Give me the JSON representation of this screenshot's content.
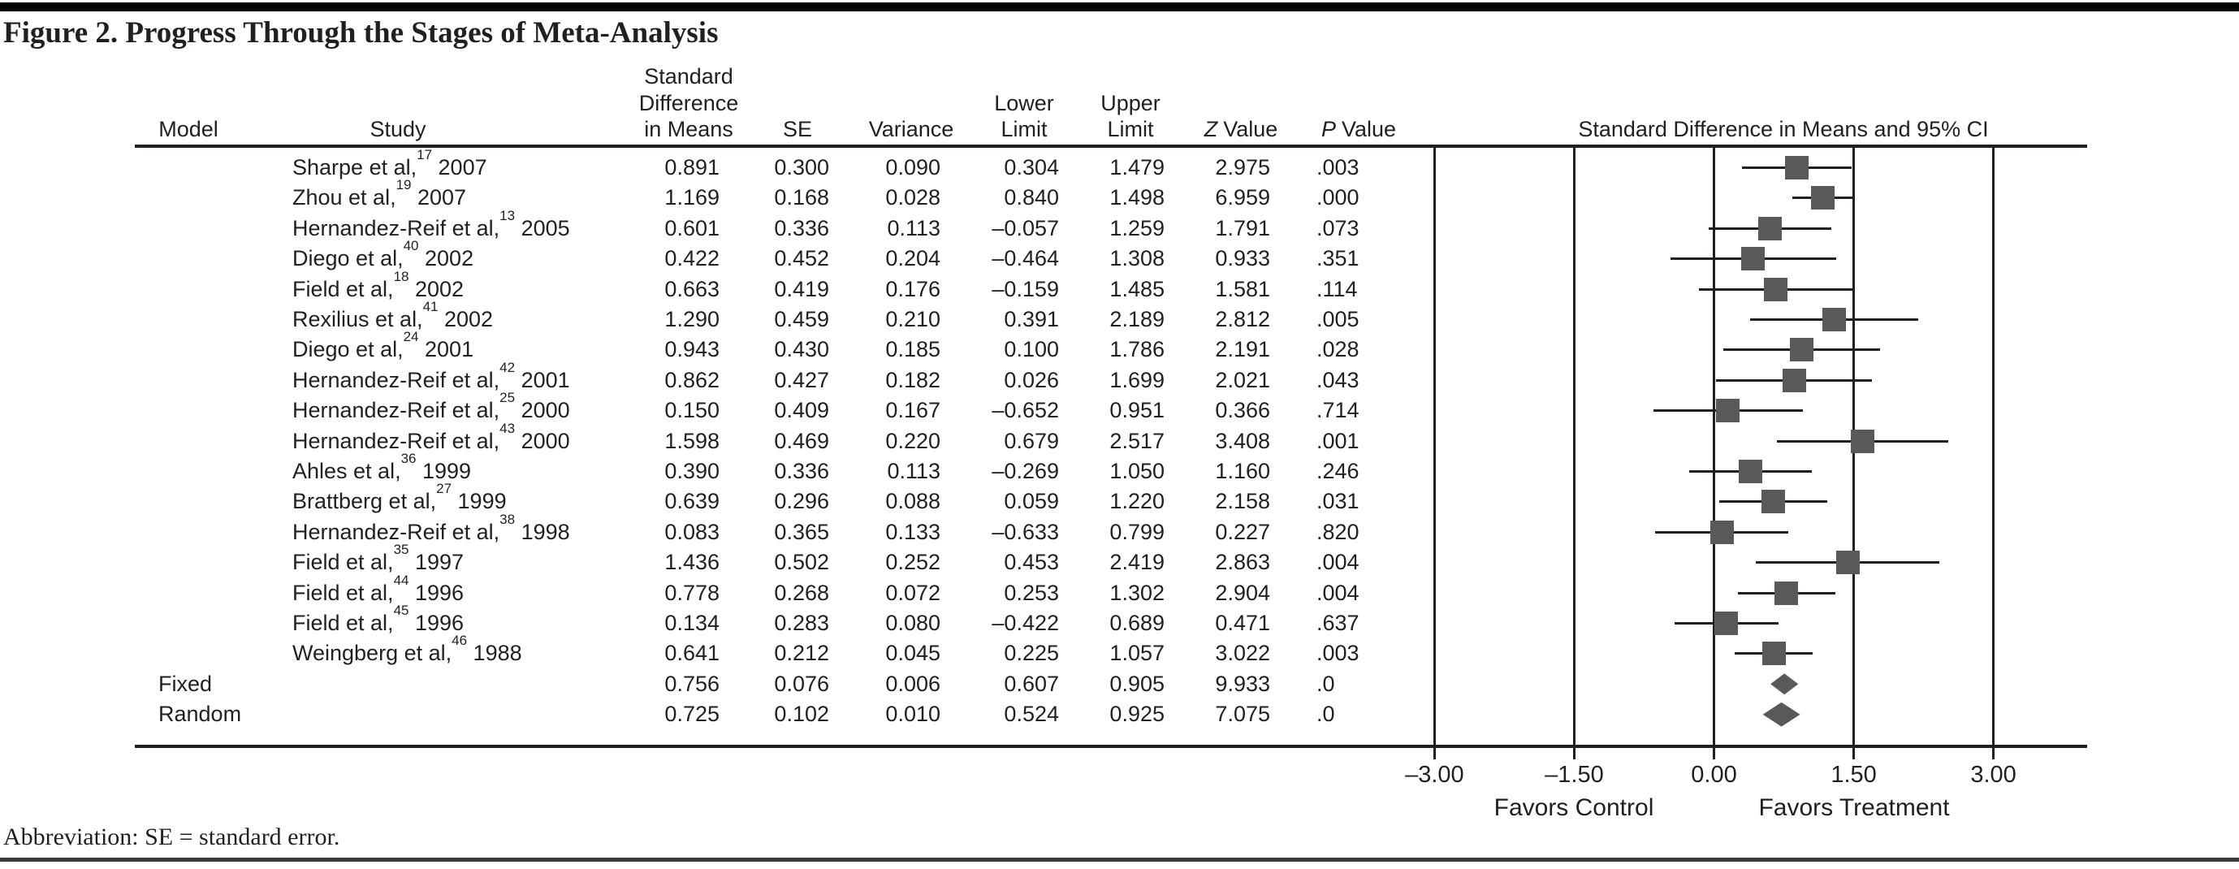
{
  "figure": {
    "title": "Figure 2. Progress Through the Stages of Meta-Analysis",
    "footnote": "Abbreviation: SE = standard error."
  },
  "table": {
    "headers": {
      "model": "Model",
      "study": "Study",
      "sdm_line1": "Standard",
      "sdm_line2": "Difference",
      "sdm_line3": "in Means",
      "se": "SE",
      "variance": "Variance",
      "lower_line1": "Lower",
      "lower_line2": "Limit",
      "upper_line1": "Upper",
      "upper_line2": "Limit",
      "z_prefix": "Z",
      "z_suffix": "Value",
      "p_prefix": "P",
      "p_suffix": "Value"
    },
    "rows": [
      {
        "model": "",
        "study": "Sharpe et al,",
        "ref": "17",
        "year": "2007",
        "sdm": "0.891",
        "se": "0.300",
        "variance": "0.090",
        "lower": "0.304",
        "upper": "1.479",
        "z": "2.975",
        "p": ".003"
      },
      {
        "model": "",
        "study": "Zhou et al,",
        "ref": "19",
        "year": "2007",
        "sdm": "1.169",
        "se": "0.168",
        "variance": "0.028",
        "lower": "0.840",
        "upper": "1.498",
        "z": "6.959",
        "p": ".000"
      },
      {
        "model": "",
        "study": "Hernandez-Reif et al,",
        "ref": "13",
        "year": "2005",
        "sdm": "0.601",
        "se": "0.336",
        "variance": "0.113",
        "lower": "–0.057",
        "upper": "1.259",
        "z": "1.791",
        "p": ".073"
      },
      {
        "model": "",
        "study": "Diego et al,",
        "ref": "40",
        "year": "2002",
        "sdm": "0.422",
        "se": "0.452",
        "variance": "0.204",
        "lower": "–0.464",
        "upper": "1.308",
        "z": "0.933",
        "p": ".351"
      },
      {
        "model": "",
        "study": "Field et al,",
        "ref": "18",
        "year": "2002",
        "sdm": "0.663",
        "se": "0.419",
        "variance": "0.176",
        "lower": "–0.159",
        "upper": "1.485",
        "z": "1.581",
        "p": ".114"
      },
      {
        "model": "",
        "study": "Rexilius et al,",
        "ref": "41",
        "year": "2002",
        "sdm": "1.290",
        "se": "0.459",
        "variance": "0.210",
        "lower": "0.391",
        "upper": "2.189",
        "z": "2.812",
        "p": ".005"
      },
      {
        "model": "",
        "study": "Diego et al,",
        "ref": "24",
        "year": "2001",
        "sdm": "0.943",
        "se": "0.430",
        "variance": "0.185",
        "lower": "0.100",
        "upper": "1.786",
        "z": "2.191",
        "p": ".028"
      },
      {
        "model": "",
        "study": "Hernandez-Reif et al,",
        "ref": "42",
        "year": "2001",
        "sdm": "0.862",
        "se": "0.427",
        "variance": "0.182",
        "lower": "0.026",
        "upper": "1.699",
        "z": "2.021",
        "p": ".043"
      },
      {
        "model": "",
        "study": "Hernandez-Reif et al,",
        "ref": "25",
        "year": "2000",
        "sdm": "0.150",
        "se": "0.409",
        "variance": "0.167",
        "lower": "–0.652",
        "upper": "0.951",
        "z": "0.366",
        "p": ".714"
      },
      {
        "model": "",
        "study": "Hernandez-Reif et al,",
        "ref": "43",
        "year": "2000",
        "sdm": "1.598",
        "se": "0.469",
        "variance": "0.220",
        "lower": "0.679",
        "upper": "2.517",
        "z": "3.408",
        "p": ".001"
      },
      {
        "model": "",
        "study": "Ahles et al,",
        "ref": "36",
        "year": "1999",
        "sdm": "0.390",
        "se": "0.336",
        "variance": "0.113",
        "lower": "–0.269",
        "upper": "1.050",
        "z": "1.160",
        "p": ".246"
      },
      {
        "model": "",
        "study": "Brattberg et al,",
        "ref": "27",
        "year": "1999",
        "sdm": "0.639",
        "se": "0.296",
        "variance": "0.088",
        "lower": "0.059",
        "upper": "1.220",
        "z": "2.158",
        "p": ".031"
      },
      {
        "model": "",
        "study": "Hernandez-Reif et al,",
        "ref": "38",
        "year": "1998",
        "sdm": "0.083",
        "se": "0.365",
        "variance": "0.133",
        "lower": "–0.633",
        "upper": "0.799",
        "z": "0.227",
        "p": ".820"
      },
      {
        "model": "",
        "study": "Field et al,",
        "ref": "35",
        "year": "1997",
        "sdm": "1.436",
        "se": "0.502",
        "variance": "0.252",
        "lower": "0.453",
        "upper": "2.419",
        "z": "2.863",
        "p": ".004"
      },
      {
        "model": "",
        "study": "Field et al,",
        "ref": "44",
        "year": "1996",
        "sdm": "0.778",
        "se": "0.268",
        "variance": "0.072",
        "lower": "0.253",
        "upper": "1.302",
        "z": "2.904",
        "p": ".004"
      },
      {
        "model": "",
        "study": "Field et al,",
        "ref": "45",
        "year": "1996",
        "sdm": "0.134",
        "se": "0.283",
        "variance": "0.080",
        "lower": "–0.422",
        "upper": "0.689",
        "z": "0.471",
        "p": ".637"
      },
      {
        "model": "",
        "study": "Weingberg et al,",
        "ref": "46",
        "year": "1988",
        "sdm": "0.641",
        "se": "0.212",
        "variance": "0.045",
        "lower": "0.225",
        "upper": "1.057",
        "z": "3.022",
        "p": ".003"
      },
      {
        "model": "Fixed",
        "study": "",
        "ref": "",
        "year": "",
        "sdm": "0.756",
        "se": "0.076",
        "variance": "0.006",
        "lower": "0.607",
        "upper": "0.905",
        "z": "9.933",
        "p": ".0"
      },
      {
        "model": "Random",
        "study": "",
        "ref": "",
        "year": "",
        "sdm": "0.725",
        "se": "0.102",
        "variance": "0.010",
        "lower": "0.524",
        "upper": "0.925",
        "z": "7.075",
        "p": ".0"
      }
    ]
  },
  "plot": {
    "header": "Standard Difference in Means and 95% CI",
    "axis_ticks": [
      {
        "label": "–3.00",
        "value": -3
      },
      {
        "label": "–1.50",
        "value": -1.5
      },
      {
        "label": "0.00",
        "value": 0
      },
      {
        "label": "1.50",
        "value": 1.5
      },
      {
        "label": "3.00",
        "value": 3
      }
    ],
    "favors_left": "Favors Control",
    "favors_right": "Favors Treatment",
    "marker_color": "#58595b",
    "line_color": "#231f20"
  },
  "chart_data": {
    "type": "forest",
    "title": "Standard Difference in Means and 95% CI",
    "xlabel_left": "Favors Control",
    "xlabel_right": "Favors Treatment",
    "xlim": [
      -4,
      4
    ],
    "x_ticks": [
      -3,
      -1.5,
      0,
      1.5,
      3
    ],
    "grid": "vertical-lines-at-ticks",
    "studies": [
      {
        "label": "Sharpe et al, 2007",
        "mean": 0.891,
        "lower": 0.304,
        "upper": 1.479
      },
      {
        "label": "Zhou et al, 2007",
        "mean": 1.169,
        "lower": 0.84,
        "upper": 1.498
      },
      {
        "label": "Hernandez-Reif et al, 2005",
        "mean": 0.601,
        "lower": -0.057,
        "upper": 1.259
      },
      {
        "label": "Diego et al, 2002",
        "mean": 0.422,
        "lower": -0.464,
        "upper": 1.308
      },
      {
        "label": "Field et al, 2002",
        "mean": 0.663,
        "lower": -0.159,
        "upper": 1.485
      },
      {
        "label": "Rexilius et al, 2002",
        "mean": 1.29,
        "lower": 0.391,
        "upper": 2.189
      },
      {
        "label": "Diego et al, 2001",
        "mean": 0.943,
        "lower": 0.1,
        "upper": 1.786
      },
      {
        "label": "Hernandez-Reif et al, 2001",
        "mean": 0.862,
        "lower": 0.026,
        "upper": 1.699
      },
      {
        "label": "Hernandez-Reif et al, 2000",
        "mean": 0.15,
        "lower": -0.652,
        "upper": 0.951
      },
      {
        "label": "Hernandez-Reif et al, 2000 (b)",
        "mean": 1.598,
        "lower": 0.679,
        "upper": 2.517
      },
      {
        "label": "Ahles et al, 1999",
        "mean": 0.39,
        "lower": -0.269,
        "upper": 1.05
      },
      {
        "label": "Brattberg et al, 1999",
        "mean": 0.639,
        "lower": 0.059,
        "upper": 1.22
      },
      {
        "label": "Hernandez-Reif et al, 1998",
        "mean": 0.083,
        "lower": -0.633,
        "upper": 0.799
      },
      {
        "label": "Field et al, 1997",
        "mean": 1.436,
        "lower": 0.453,
        "upper": 2.419
      },
      {
        "label": "Field et al, 1996",
        "mean": 0.778,
        "lower": 0.253,
        "upper": 1.302
      },
      {
        "label": "Field et al, 1996 (b)",
        "mean": 0.134,
        "lower": -0.422,
        "upper": 0.689
      },
      {
        "label": "Weingberg et al, 1988",
        "mean": 0.641,
        "lower": 0.225,
        "upper": 1.057
      }
    ],
    "summaries": [
      {
        "label": "Fixed",
        "mean": 0.756,
        "lower": 0.607,
        "upper": 0.905
      },
      {
        "label": "Random",
        "mean": 0.725,
        "lower": 0.524,
        "upper": 0.925
      }
    ]
  }
}
